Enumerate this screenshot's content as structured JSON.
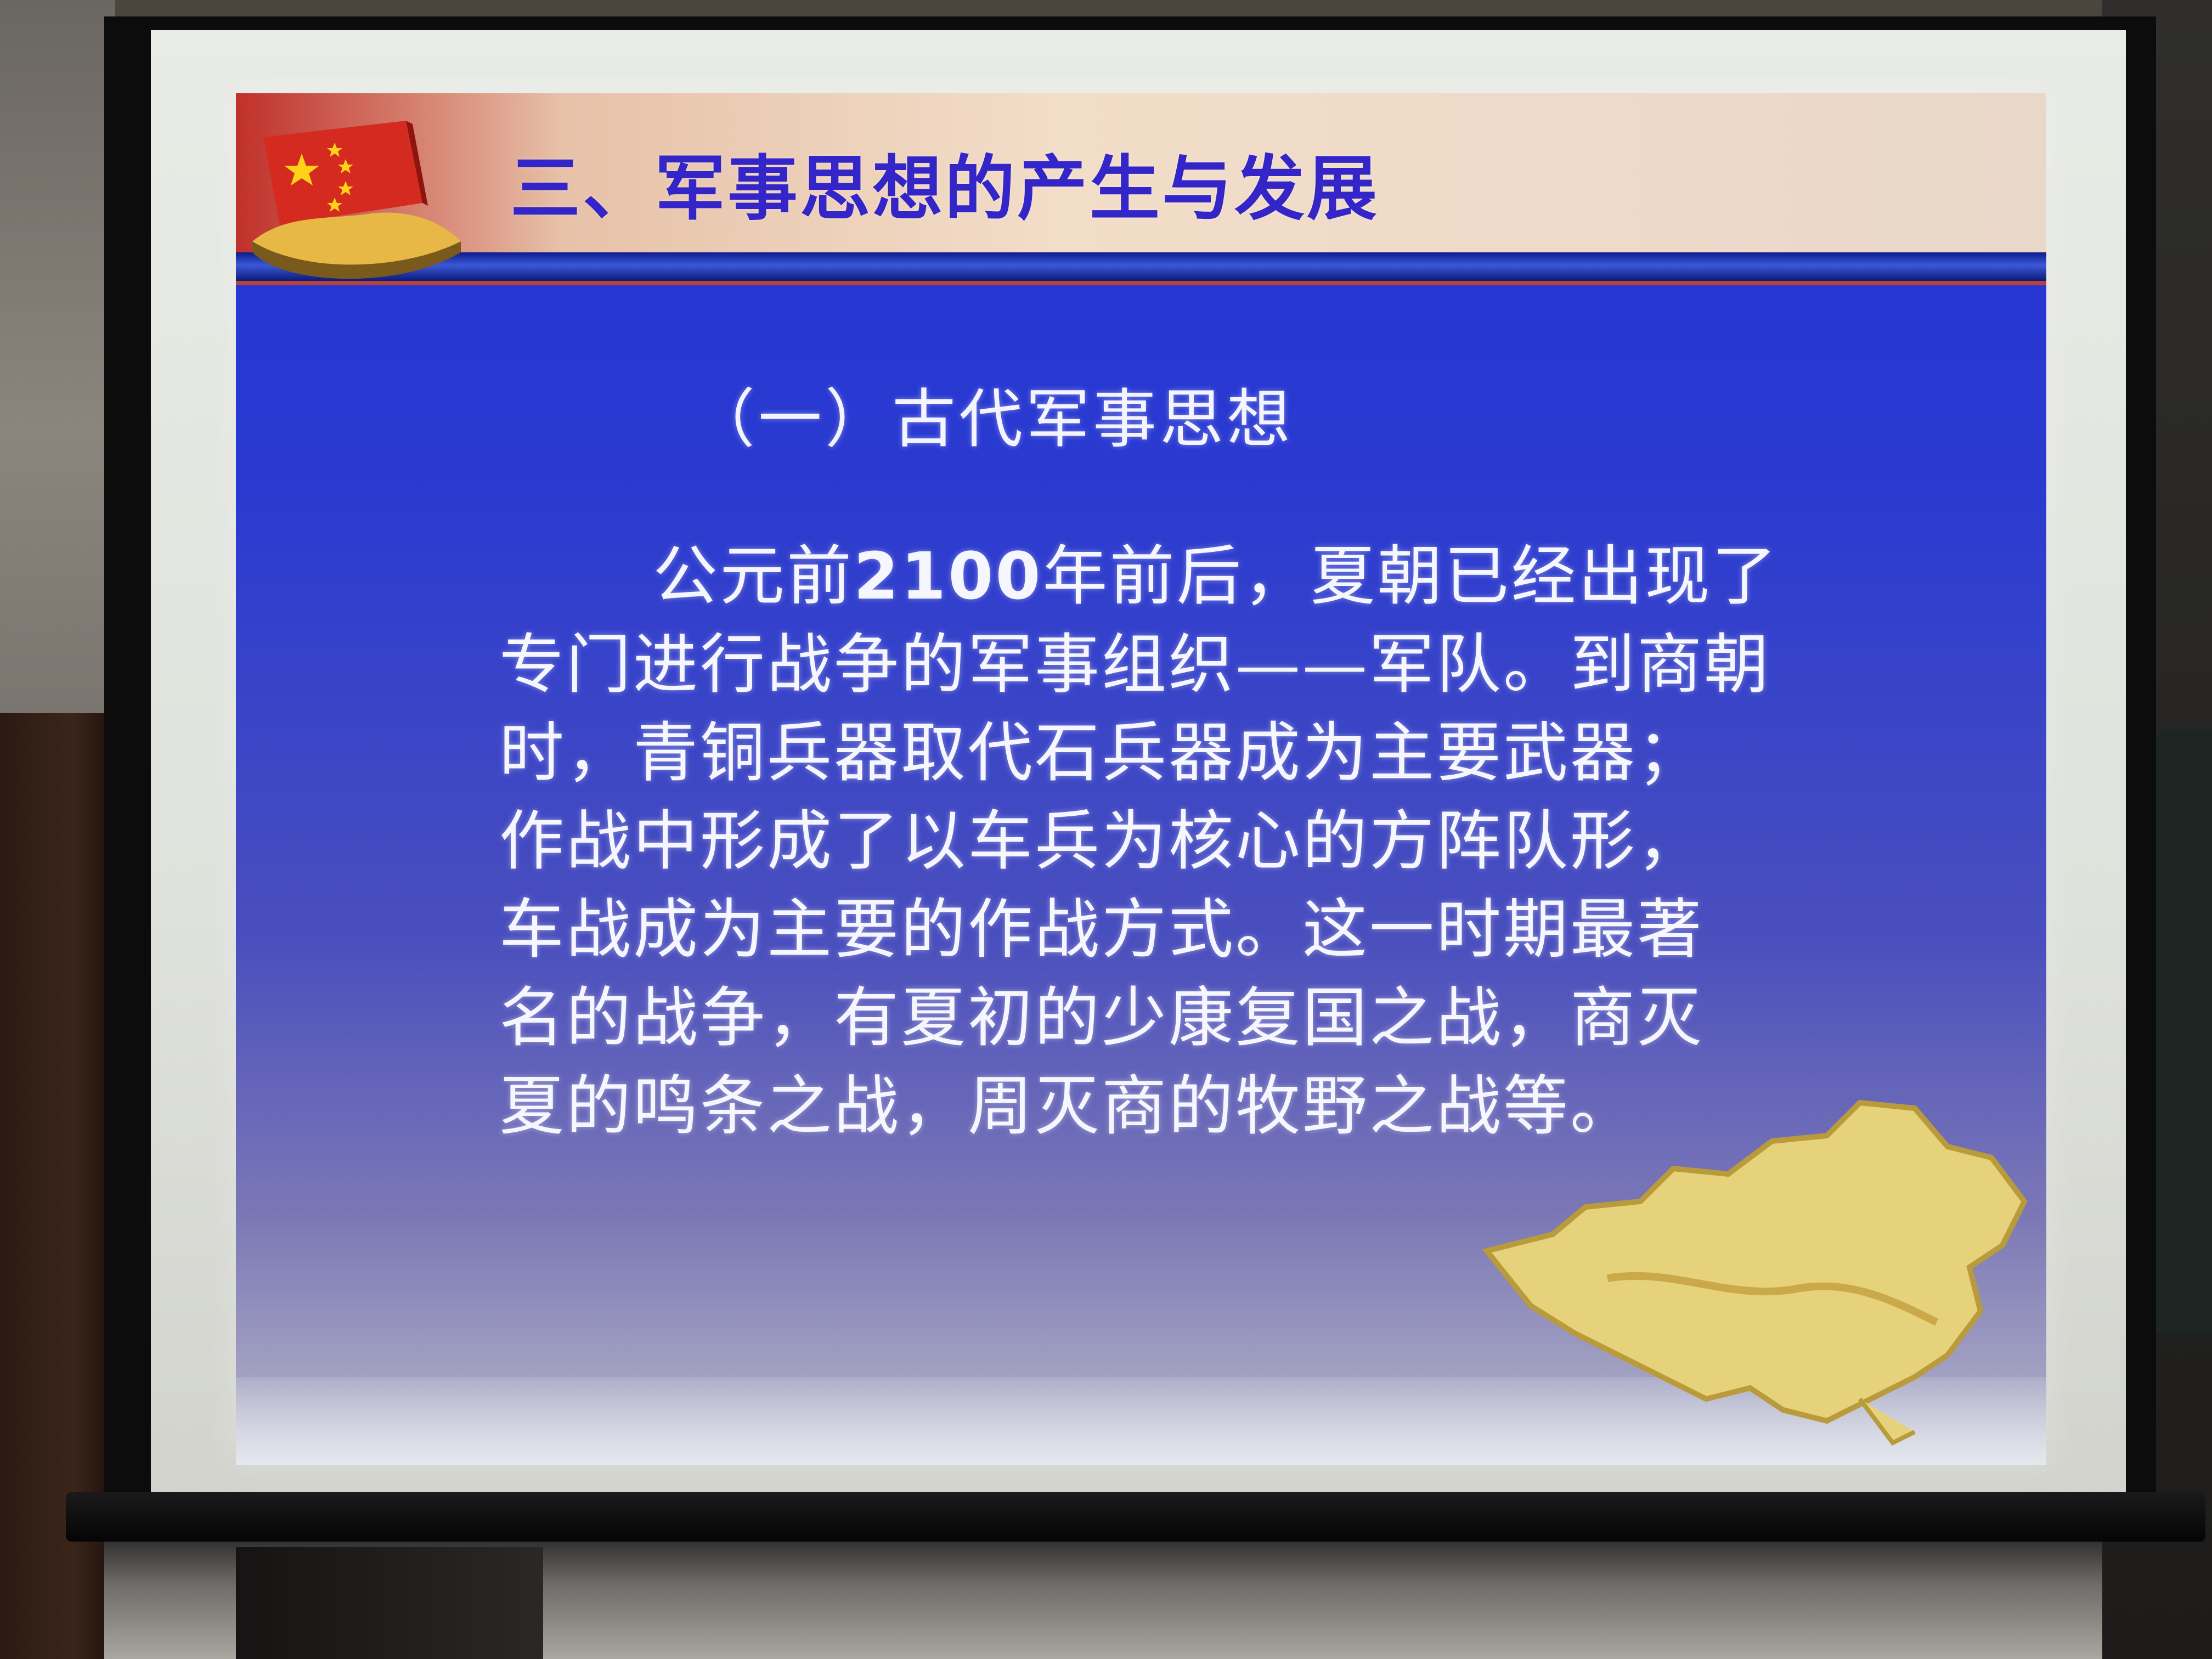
{
  "slide": {
    "title": "三、军事思想的产生与发展",
    "subtitle": "（一）古代军事思想",
    "body_lines": [
      {
        "pre": "公元前",
        "bold": "2100",
        "post": "年前后，夏朝已经出现了"
      },
      "专门进行战争的军事组织——军队。到商朝",
      "时，青铜兵器取代石兵器成为主要武器；",
      "作战中形成了以车兵为核心的方阵队形，",
      "车战成为主要的作战方式。这一时期最著",
      "名的战争，有夏初的少康复国之战，商灭",
      "夏的鸣条之战，周灭商的牧野之战等。"
    ]
  },
  "colors": {
    "slide_background": "#2b3bd0",
    "title_text": "#3325c8",
    "title_banner": "#c0302a",
    "body_text": "#f6f6ff"
  },
  "icons": [
    "chinese-flag-icon",
    "china-map-icon"
  ]
}
